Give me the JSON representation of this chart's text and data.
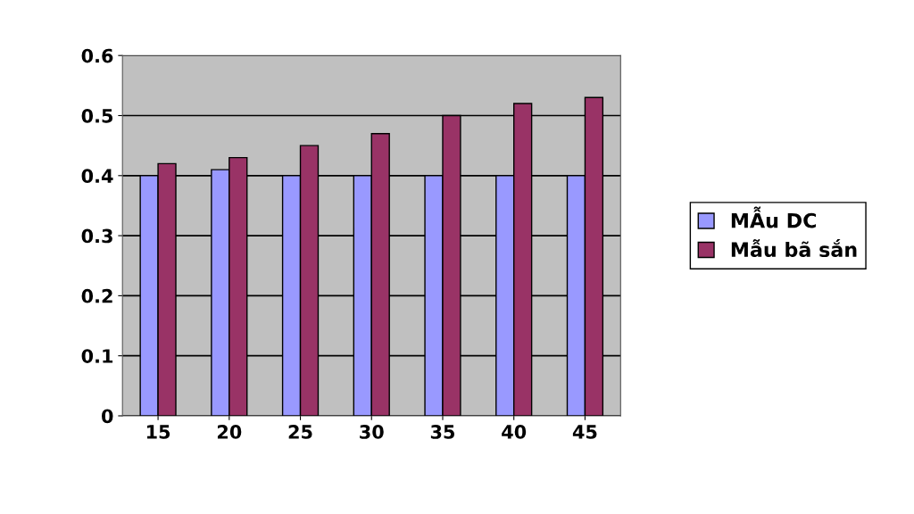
{
  "chart_data": {
    "type": "bar",
    "categories": [
      "15",
      "20",
      "25",
      "30",
      "35",
      "40",
      "45"
    ],
    "series": [
      {
        "name": "MẪu DC",
        "color": "#9999ff",
        "values": [
          0.4,
          0.41,
          0.4,
          0.4,
          0.4,
          0.4,
          0.4
        ]
      },
      {
        "name": "Mẫu bã sắn",
        "color": "#993366",
        "values": [
          0.42,
          0.43,
          0.45,
          0.47,
          0.5,
          0.52,
          0.53
        ]
      }
    ],
    "ylim": [
      0,
      0.6
    ],
    "yticks": [
      0,
      0.1,
      0.2,
      0.3,
      0.4,
      0.5,
      0.6
    ],
    "grid": "y",
    "legend": "right"
  }
}
